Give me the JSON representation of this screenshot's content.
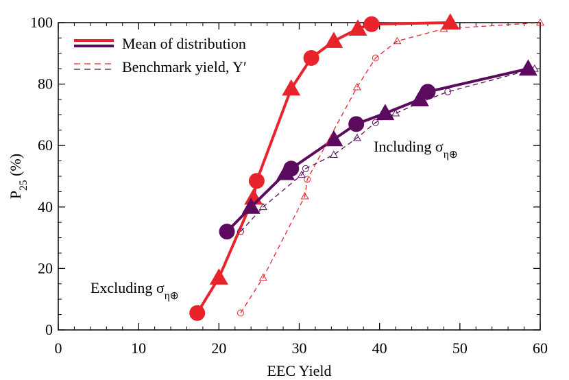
{
  "chart_data": {
    "type": "line",
    "xlabel": "EEC Yield",
    "ylabel": [
      "P",
      "25",
      " (%)"
    ],
    "xlim": [
      0,
      60
    ],
    "xticks": [
      0,
      10,
      20,
      30,
      40,
      50,
      60
    ],
    "x_minor_per_major": 5,
    "ylim": [
      0,
      100
    ],
    "yticks": [
      0,
      20,
      40,
      60,
      80,
      100
    ],
    "y_minor_per_major": 4,
    "legend": [
      {
        "label": "Mean of distribution",
        "style": "solid"
      },
      {
        "label": "Benchmark yield, Y′",
        "style": "dashed"
      }
    ],
    "annotations": [
      {
        "text": [
          "Excluding σ",
          "η⊕"
        ],
        "color": "#e8232b",
        "x": 9.5,
        "y": 12
      },
      {
        "text": [
          "Including σ",
          "η⊕"
        ],
        "color": "#5c0a5e",
        "x": 44.5,
        "y": 58
      }
    ],
    "series": [
      {
        "color": "#e8232b",
        "style": "solid",
        "x": [
          17.3,
          20,
          24.3,
          24.7,
          29,
          31.5,
          34.3,
          37.3,
          39,
          48.8
        ],
        "values": [
          5.5,
          17,
          43,
          48.5,
          78.5,
          88.5,
          94,
          98,
          99.5,
          100
        ],
        "markers": [
          "circle",
          "triangle",
          "triangle",
          "circle",
          "triangle",
          "circle",
          "triangle",
          "triangle",
          "circle",
          "triangle"
        ]
      },
      {
        "color": "#5c0a5e",
        "style": "solid",
        "x": [
          21,
          24,
          28.3,
          29,
          34.3,
          37.1,
          40.7,
          45,
          46,
          58.5
        ],
        "values": [
          32,
          40,
          51,
          52.5,
          62,
          67,
          70.5,
          75,
          77.5,
          85
        ],
        "markers": [
          "circle",
          "triangle",
          "triangle",
          "circle",
          "triangle",
          "circle",
          "triangle",
          "triangle",
          "circle",
          "triangle"
        ]
      },
      {
        "color": "#e8232b",
        "style": "dashed",
        "x": [
          22.7,
          25.5,
          30.7,
          31,
          37.2,
          39.5,
          42.2,
          48,
          60
        ],
        "values": [
          5.5,
          17,
          43.5,
          49,
          79,
          88.5,
          94,
          98,
          100
        ],
        "markers": [
          "circle",
          "triangle",
          "triangle",
          "circle",
          "triangle",
          "circle",
          "triangle",
          "triangle",
          "triangle"
        ]
      },
      {
        "color": "#5c0a5e",
        "style": "dashed",
        "x": [
          22.7,
          25.5,
          30.3,
          30.8,
          34.3,
          37.2,
          39.5,
          42,
          45.5,
          48.5,
          59.3
        ],
        "values": [
          32,
          40,
          50.5,
          52.5,
          57,
          62.5,
          67.5,
          70.5,
          74.5,
          77.5,
          85
        ],
        "markers": [
          "circle",
          "triangle",
          "triangle",
          "circle",
          "triangle",
          "triangle",
          "circle",
          "triangle",
          "triangle",
          "circle",
          "triangle"
        ]
      }
    ]
  }
}
